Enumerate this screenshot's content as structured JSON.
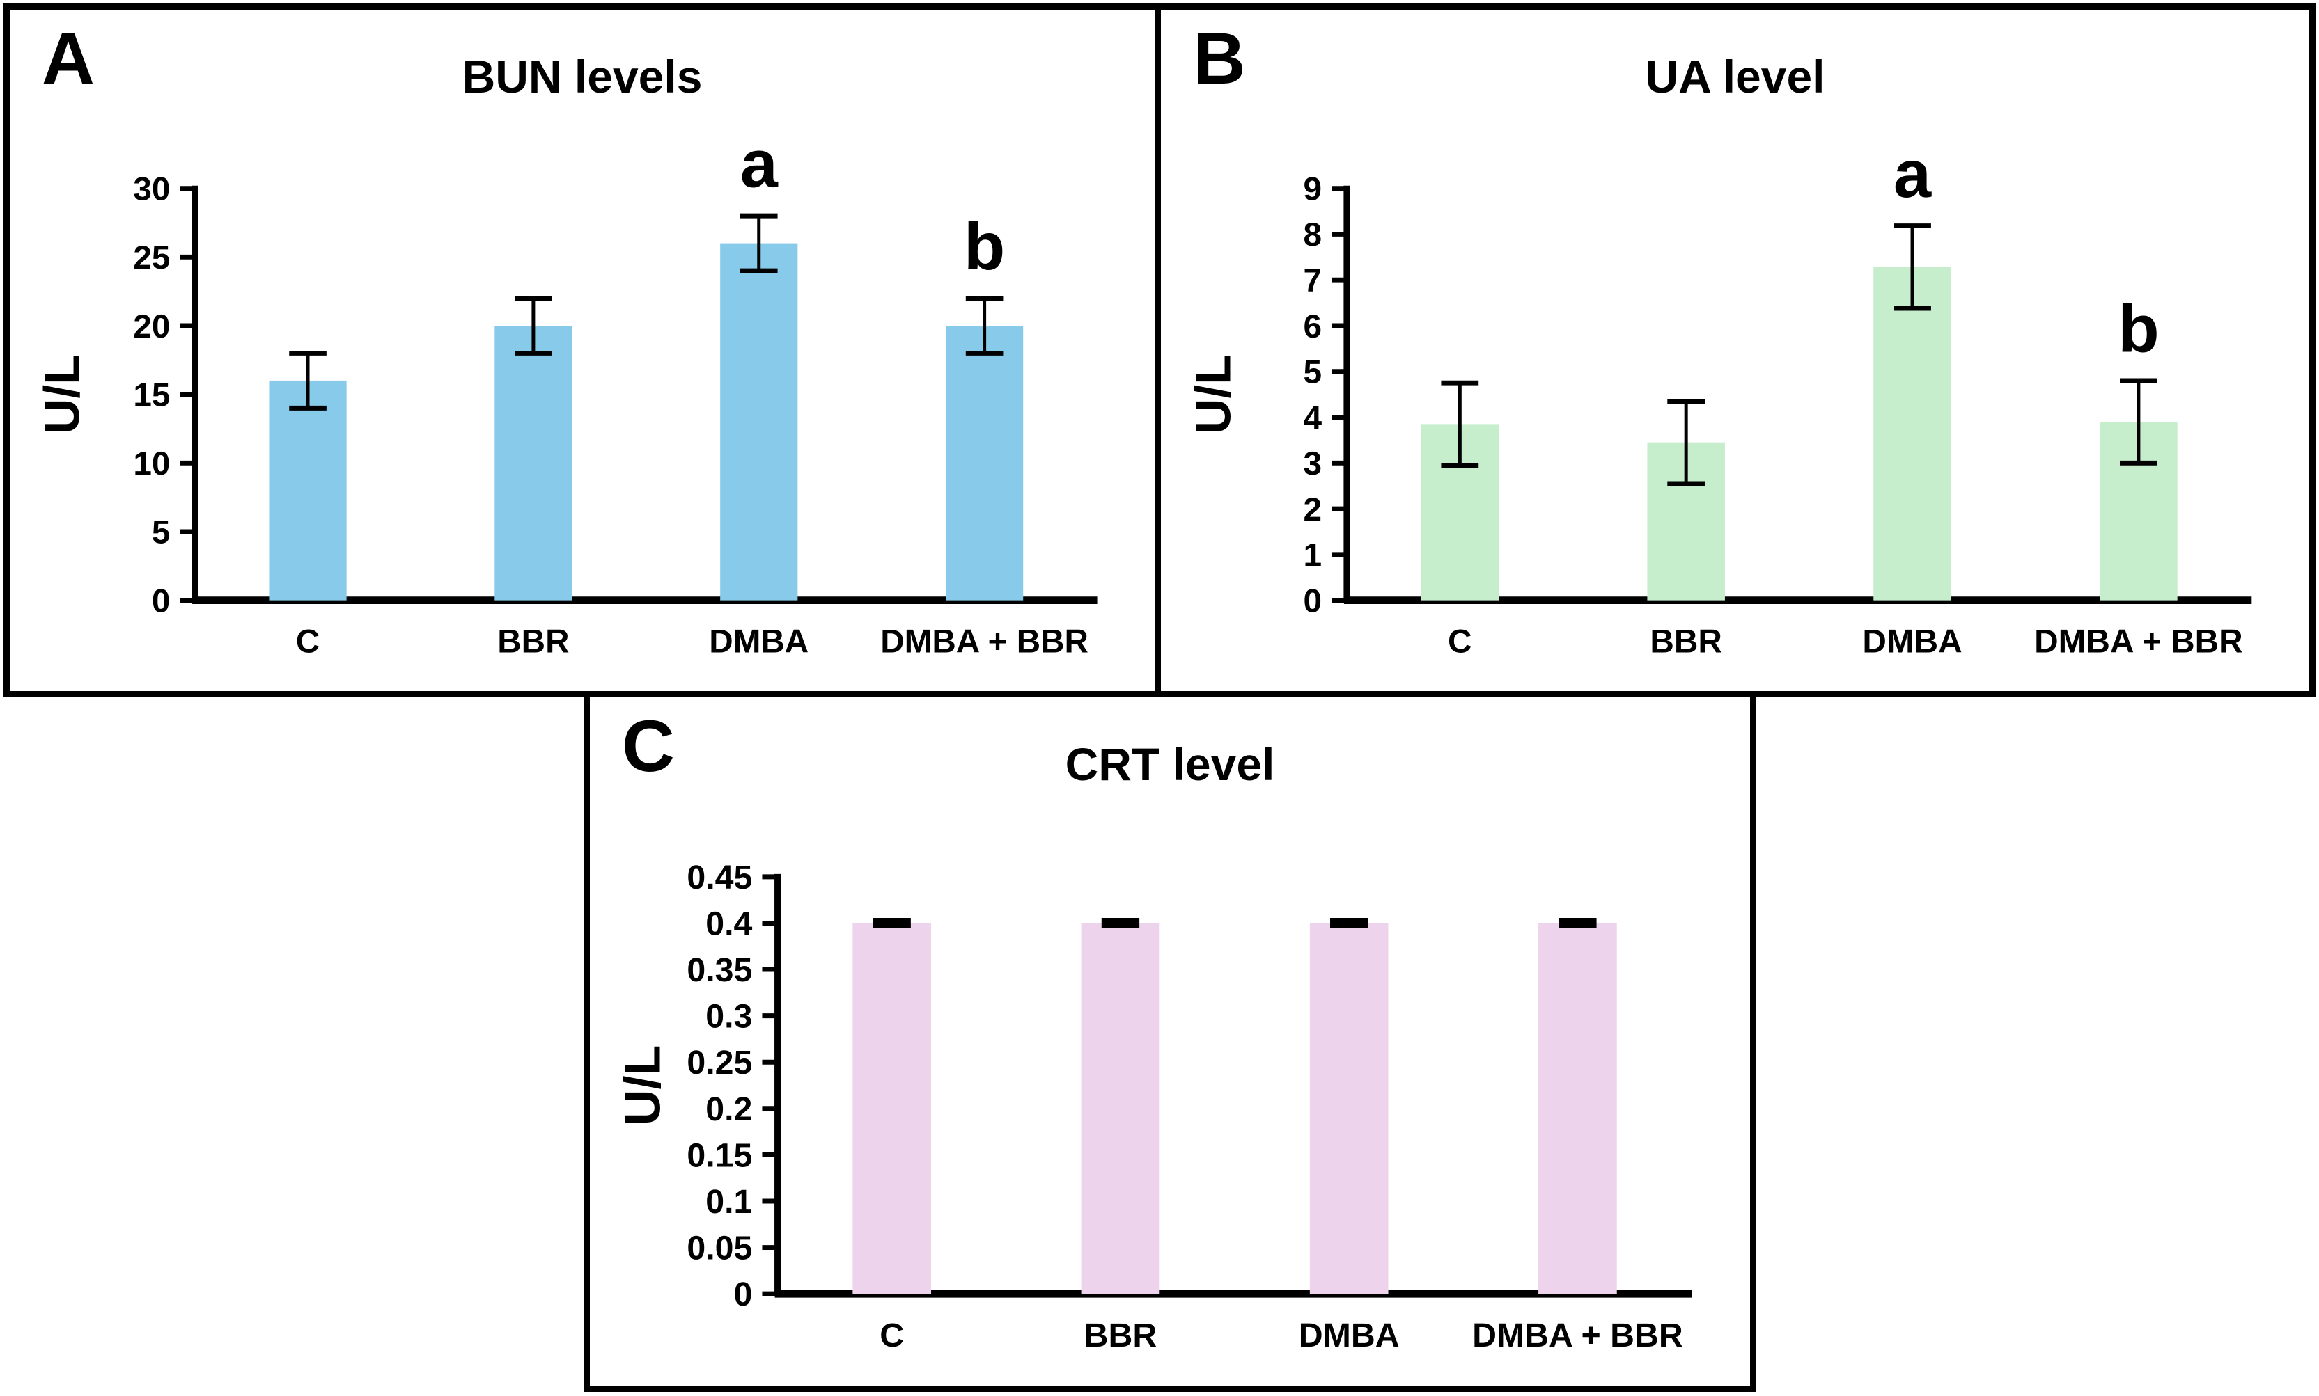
{
  "figure": {
    "background_color": "#ffffff",
    "border_color": "#000000",
    "axis_color": "#000000",
    "error_bar_color": "#000000"
  },
  "chart_data": [
    {
      "type": "bar",
      "panel_label": "A",
      "title": "BUN levels",
      "xlabel": "",
      "ylabel": "U/L",
      "categories": [
        "C",
        "BBR",
        "DMBA",
        "DMBA + BBR"
      ],
      "values": [
        16,
        20,
        26,
        20
      ],
      "errors": [
        2,
        2,
        2,
        2
      ],
      "bar_annotations": [
        "",
        "",
        "a",
        "b"
      ],
      "ylim": [
        0,
        30
      ],
      "ytick_step": 5,
      "ytick_labels": [
        "0",
        "5",
        "10",
        "15",
        "20",
        "25",
        "30"
      ],
      "bar_color": "#88CAE9",
      "grid": false,
      "legend": false
    },
    {
      "type": "bar",
      "panel_label": "B",
      "title": "UA level",
      "xlabel": "",
      "ylabel": "U/L",
      "categories": [
        "C",
        "BBR",
        "DMBA",
        "DMBA + BBR"
      ],
      "values": [
        3.85,
        3.45,
        7.28,
        3.9
      ],
      "errors": [
        0.9,
        0.9,
        0.9,
        0.9
      ],
      "bar_annotations": [
        "",
        "",
        "a",
        "b"
      ],
      "ylim": [
        0,
        9
      ],
      "ytick_step": 1,
      "ytick_labels": [
        "0",
        "1",
        "2",
        "3",
        "4",
        "5",
        "6",
        "7",
        "8",
        "9"
      ],
      "bar_color": "#C6EECC",
      "grid": false,
      "legend": false
    },
    {
      "type": "bar",
      "panel_label": "C",
      "title": "CRT level",
      "xlabel": "",
      "ylabel": "U/L",
      "categories": [
        "C",
        "BBR",
        "DMBA",
        "DMBA + BBR"
      ],
      "values": [
        0.4,
        0.4,
        0.4,
        0.4
      ],
      "errors": [
        0.003,
        0.003,
        0.003,
        0.003
      ],
      "bar_annotations": [
        "",
        "",
        "",
        ""
      ],
      "ylim": [
        0,
        0.45
      ],
      "ytick_step": 0.05,
      "ytick_labels": [
        "0",
        "0.05",
        "0.1",
        "0.15",
        "0.2",
        "0.25",
        "0.3",
        "0.35",
        "0.4",
        "0.45"
      ],
      "bar_color": "#EED3ED",
      "grid": false,
      "legend": false
    }
  ]
}
